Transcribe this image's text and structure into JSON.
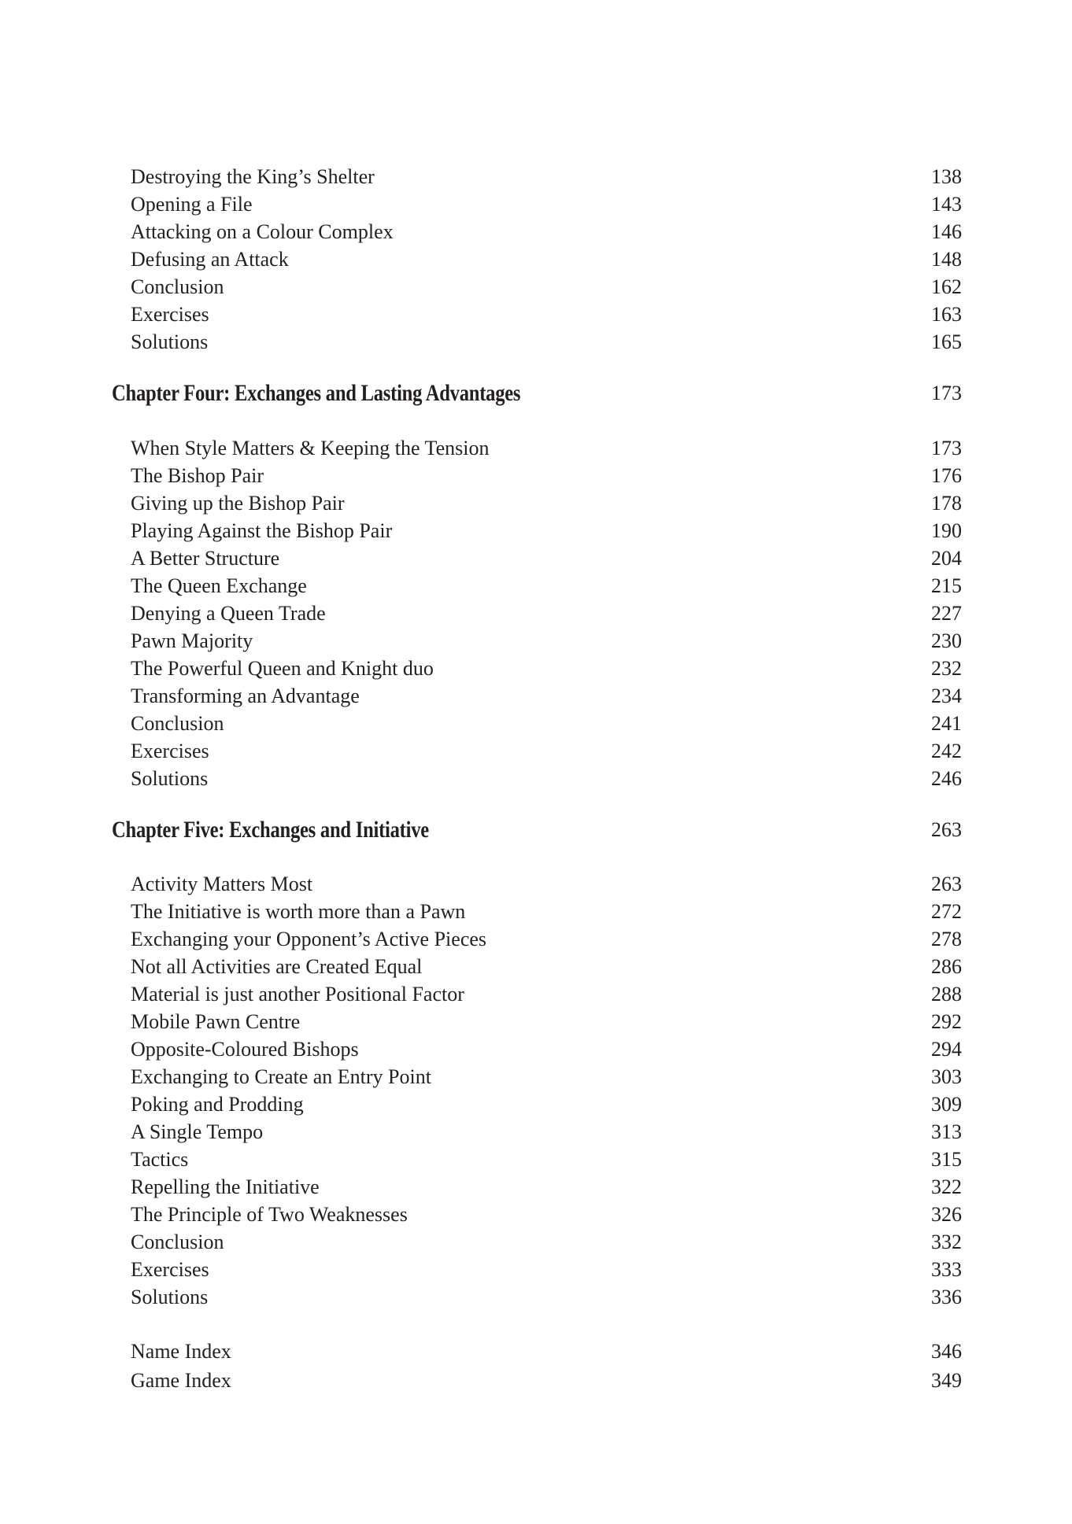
{
  "sections": [
    {
      "entries": [
        {
          "title": "Destroying the King’s Shelter",
          "page": "138"
        },
        {
          "title": "Opening a File",
          "page": "143"
        },
        {
          "title": "Attacking on a Colour Complex",
          "page": "146"
        },
        {
          "title": "Defusing an Attack",
          "page": "148"
        },
        {
          "title": "Conclusion",
          "page": "162"
        },
        {
          "title": "Exercises",
          "page": "163"
        },
        {
          "title": "Solutions",
          "page": "165"
        }
      ]
    },
    {
      "chapter": {
        "title": "Chapter Four: Exchanges and Lasting Advantages",
        "page": "173"
      },
      "entries": [
        {
          "title": "When Style Matters & Keeping the Tension",
          "page": "173"
        },
        {
          "title": "The Bishop Pair",
          "page": "176"
        },
        {
          "title": "Giving up the Bishop Pair",
          "page": "178"
        },
        {
          "title": "Playing Against the Bishop Pair",
          "page": "190"
        },
        {
          "title": "A Better Structure",
          "page": "204"
        },
        {
          "title": "The Queen Exchange",
          "page": "215"
        },
        {
          "title": "Denying a Queen Trade",
          "page": "227"
        },
        {
          "title": "Pawn Majority",
          "page": "230"
        },
        {
          "title": "The Powerful Queen and Knight duo",
          "page": "232"
        },
        {
          "title": "Transforming an Advantage",
          "page": "234"
        },
        {
          "title": "Conclusion",
          "page": "241"
        },
        {
          "title": "Exercises",
          "page": "242"
        },
        {
          "title": "Solutions",
          "page": "246"
        }
      ]
    },
    {
      "chapter": {
        "title": "Chapter Five: Exchanges and Initiative",
        "page": "263"
      },
      "entries": [
        {
          "title": "Activity Matters Most",
          "page": "263"
        },
        {
          "title": "The Initiative is worth more than a Pawn",
          "page": "272"
        },
        {
          "title": "Exchanging your Opponent’s Active Pieces",
          "page": "278"
        },
        {
          "title": "Not all Activities are Created Equal",
          "page": "286"
        },
        {
          "title": "Material is just another Positional Factor",
          "page": "288"
        },
        {
          "title": "Mobile Pawn Centre",
          "page": "292"
        },
        {
          "title": "Opposite-Coloured Bishops",
          "page": "294"
        },
        {
          "title": "Exchanging to Create an Entry Point",
          "page": "303"
        },
        {
          "title": "Poking and Prodding",
          "page": "309"
        },
        {
          "title": "A Single Tempo",
          "page": "313"
        },
        {
          "title": "Tactics",
          "page": "315"
        },
        {
          "title": "Repelling the Initiative",
          "page": "322"
        },
        {
          "title": "The Principle of Two Weaknesses",
          "page": "326"
        },
        {
          "title": "Conclusion",
          "page": "332"
        },
        {
          "title": "Exercises",
          "page": "333"
        },
        {
          "title": "Solutions",
          "page": "336"
        }
      ]
    },
    {
      "entries": [
        {
          "title": "Name Index",
          "page": "346"
        },
        {
          "title": "Game Index",
          "page": "349"
        }
      ]
    }
  ]
}
